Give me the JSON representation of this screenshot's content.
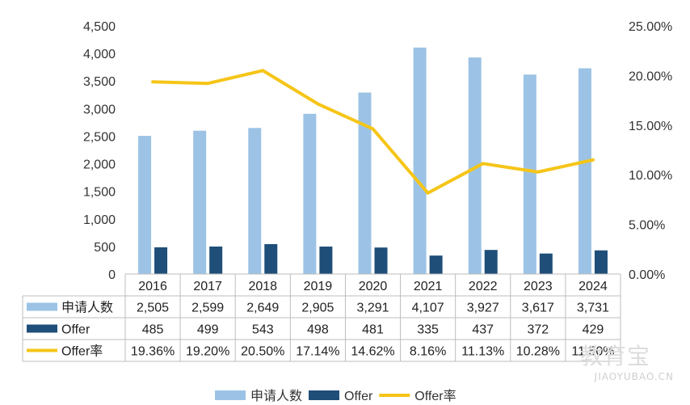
{
  "chart_data": {
    "type": "bar",
    "categories": [
      "2016",
      "2017",
      "2018",
      "2019",
      "2020",
      "2021",
      "2022",
      "2023",
      "2024"
    ],
    "series": [
      {
        "name": "申请人数",
        "type": "bar",
        "axis": "left",
        "color": "#9cc3e5",
        "values": [
          2505,
          2599,
          2649,
          2905,
          3291,
          4107,
          3927,
          3617,
          3731
        ],
        "labels": [
          "2,505",
          "2,599",
          "2,649",
          "2,905",
          "3,291",
          "4,107",
          "3,927",
          "3,617",
          "3,731"
        ]
      },
      {
        "name": "Offer",
        "type": "bar",
        "axis": "left",
        "color": "#1f4e79",
        "values": [
          485,
          499,
          543,
          498,
          481,
          335,
          437,
          372,
          429
        ],
        "labels": [
          "485",
          "499",
          "543",
          "498",
          "481",
          "335",
          "437",
          "372",
          "429"
        ]
      },
      {
        "name": "Offer率",
        "type": "line",
        "axis": "right",
        "color": "#f5c518",
        "values": [
          19.36,
          19.2,
          20.5,
          17.14,
          14.62,
          8.16,
          11.13,
          10.28,
          11.5
        ],
        "labels": [
          "19.36%",
          "19.20%",
          "20.50%",
          "17.14%",
          "14.62%",
          "8.16%",
          "11.13%",
          "10.28%",
          "11.50%"
        ]
      }
    ],
    "y_left": {
      "min": 0,
      "max": 4500,
      "ticks": [
        "0",
        "500",
        "1,000",
        "1,500",
        "2,000",
        "2,500",
        "3,000",
        "3,500",
        "4,000",
        "4,500"
      ]
    },
    "y_right": {
      "min": 0,
      "max": 25,
      "ticks": [
        "0.00%",
        "5.00%",
        "10.00%",
        "15.00%",
        "20.00%",
        "25.00%"
      ]
    },
    "grid": false,
    "data_table": true,
    "legend": "bottom-center"
  },
  "watermark": {
    "main": "教育宝",
    "sub": "JIAOYUBAO.CN"
  }
}
